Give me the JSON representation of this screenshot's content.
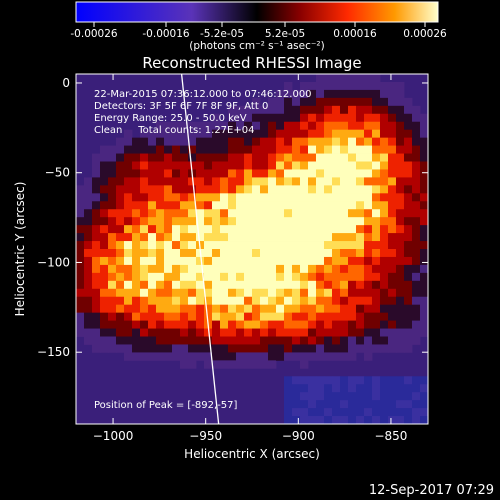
{
  "colorbar": {
    "ticks": [
      "-0.00026",
      "-0.00016",
      "-5.2e-05",
      "5.2e-05",
      "0.00016",
      "0.00026"
    ],
    "units": "(photons cm⁻² s⁻¹ asec⁻²)"
  },
  "chart_data": {
    "type": "heatmap",
    "title": "Reconstructed RHESSI Image",
    "xlabel": "Heliocentric X (arcsec)",
    "ylabel": "Heliocentric Y (arcsec)",
    "xlim": [
      -1020,
      -830
    ],
    "ylim": [
      -190,
      5
    ],
    "xticks": [
      -1000,
      -950,
      -900,
      -850
    ],
    "yticks": [
      0,
      -50,
      -100,
      -150
    ],
    "xtick_labels": [
      "−1000",
      "−950",
      "−900",
      "−850"
    ],
    "ytick_labels": [
      "0",
      "−50",
      "−100",
      "−150"
    ],
    "colorscale_range": [
      -0.00026,
      0.00026
    ],
    "annotations": [
      "22-Mar-2015 07:36:12.000 to 07:46:12.000",
      "Detectors: 3F 5F 6F 7F 8F 9F, Att 0",
      "Energy Range: 25.0 - 50.0 keV",
      "Clean     Total counts: 1.27E+04"
    ],
    "peak_label": "Position of Peak = [-892,-57]",
    "peak_position": [
      -892,
      -57
    ],
    "limb_line": [
      [
        -963,
        5
      ],
      [
        -943,
        -190
      ]
    ]
  },
  "footer": {
    "timestamp": "12-Sep-2017 07:29"
  },
  "colors": {
    "background": "#000000",
    "foreground": "#ffffff"
  }
}
